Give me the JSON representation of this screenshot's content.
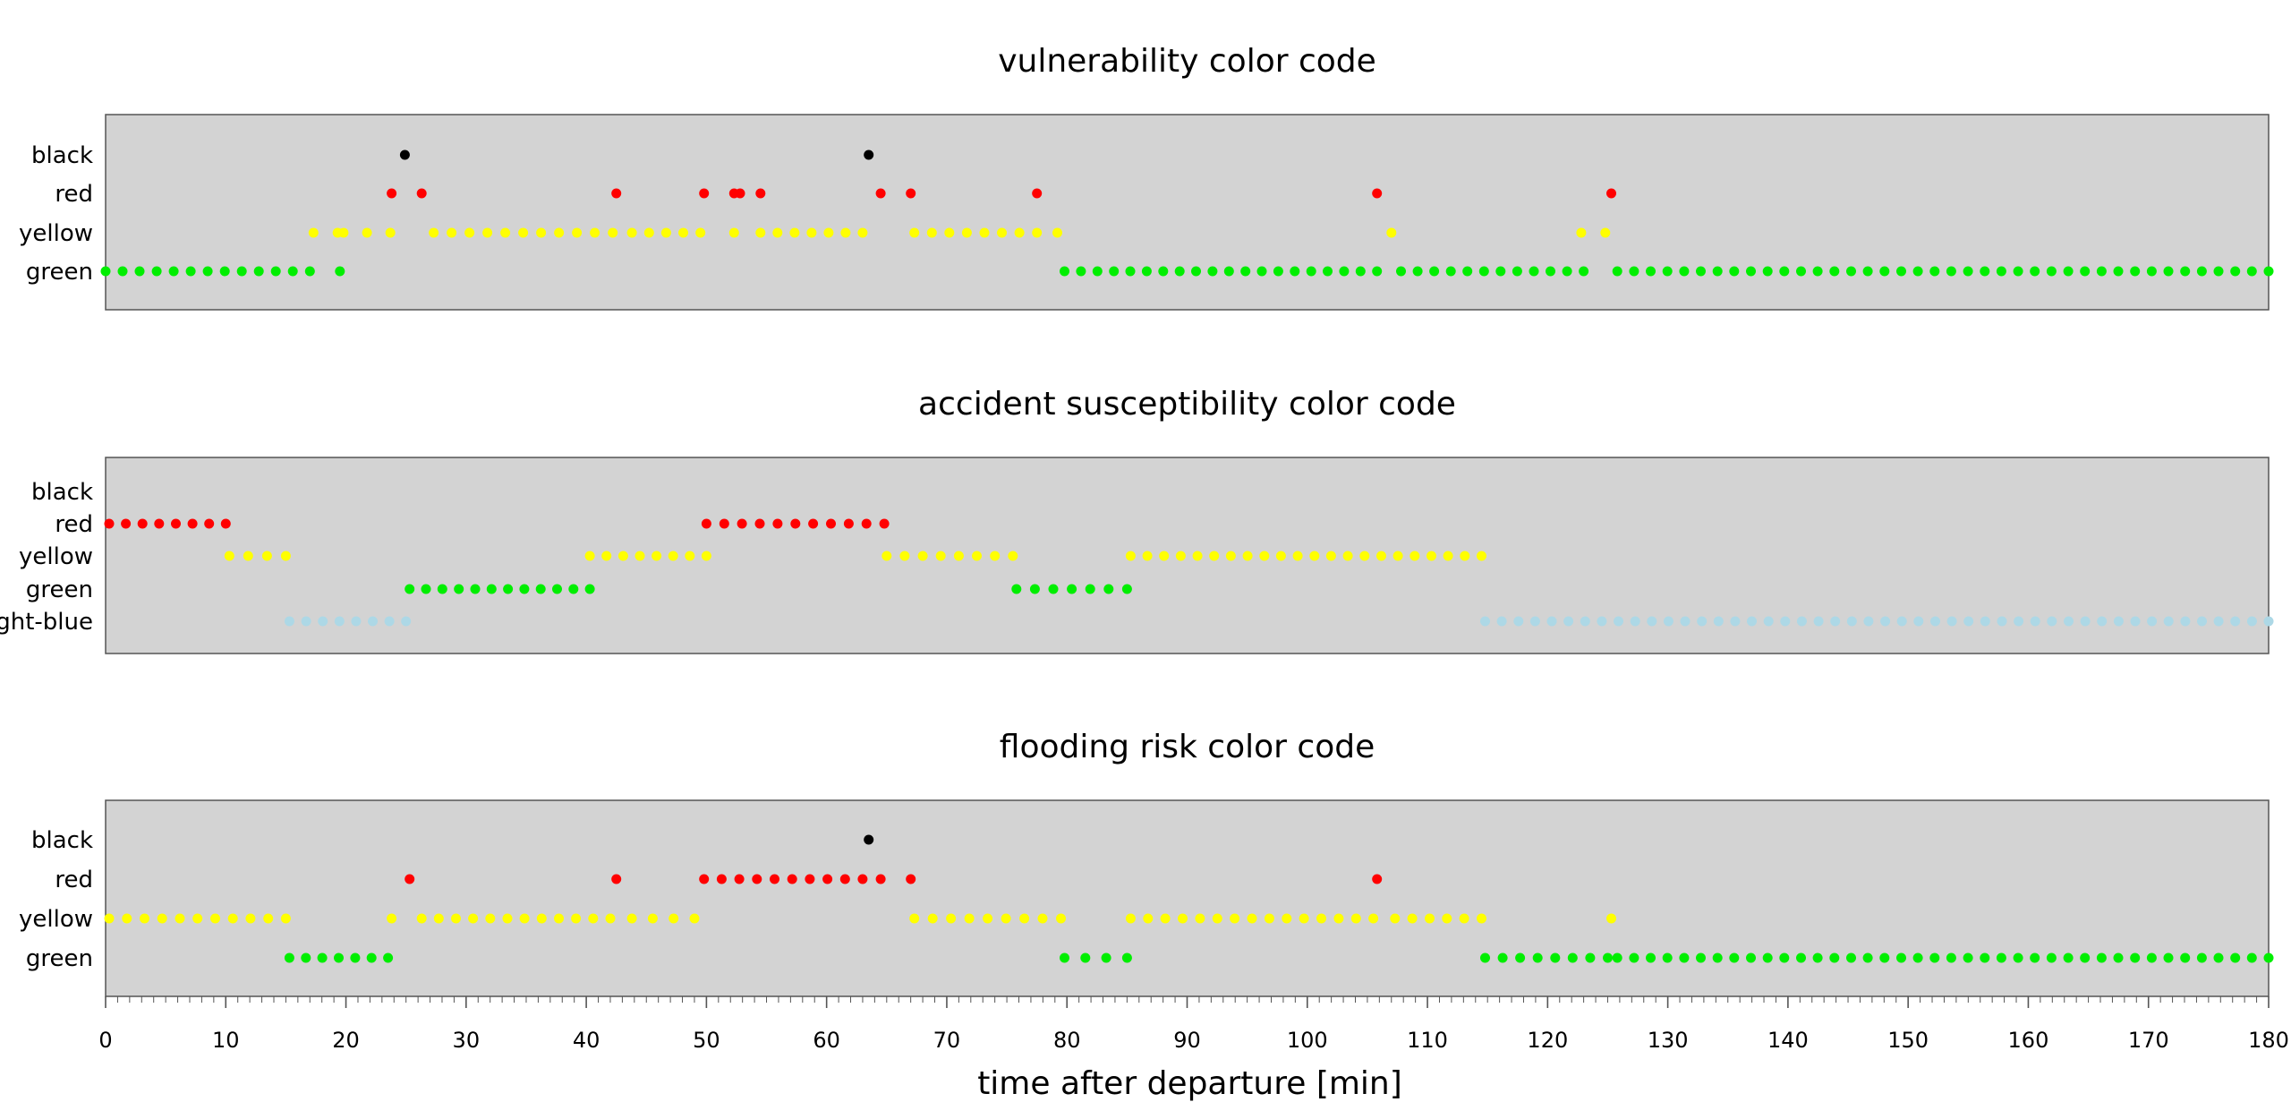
{
  "chart_data": [
    {
      "type": "scatter",
      "title": "vulnerability color code",
      "xlim": [
        0,
        180
      ],
      "categories": [
        "black",
        "red",
        "yellow",
        "green"
      ],
      "colors": {
        "black": "#000000",
        "red": "#ff0000",
        "yellow": "#ffff00",
        "green": "#00ee00"
      },
      "series": [
        {
          "name": "black",
          "segments": [
            [
              24.9,
              25.9
            ],
            [
              63.5,
              64.0
            ]
          ]
        },
        {
          "name": "red",
          "segments": [
            [
              23.8,
              24.5
            ],
            [
              26.3,
              27.0
            ],
            [
              42.5,
              43.5
            ],
            [
              49.8,
              52.3
            ],
            [
              52.8,
              54.5
            ],
            [
              64.5,
              67.0
            ],
            [
              77.5,
              78.5
            ],
            [
              105.8,
              106.8
            ],
            [
              125.3,
              125.3
            ]
          ]
        },
        {
          "name": "yellow",
          "segments": [
            [
              17.3,
              19.3
            ],
            [
              19.8,
              23.7
            ],
            [
              27.3,
              42.2
            ],
            [
              43.8,
              49.5
            ],
            [
              52.3,
              52.3
            ],
            [
              54.5,
              63.0
            ],
            [
              67.3,
              77.5
            ],
            [
              79.2,
              79.2
            ],
            [
              107.0,
              107.0
            ],
            [
              122.8,
              124.8
            ]
          ]
        },
        {
          "name": "green",
          "segments": [
            [
              0,
              17.0
            ],
            [
              19.5,
              19.5
            ],
            [
              79.8,
              105.8
            ],
            [
              107.8,
              123.0
            ],
            [
              125.8,
              180
            ]
          ]
        }
      ]
    },
    {
      "type": "scatter",
      "title": "accident susceptibility color code",
      "xlim": [
        0,
        180
      ],
      "categories": [
        "black",
        "red",
        "yellow",
        "green",
        "light-blue"
      ],
      "colors": {
        "black": "#000000",
        "red": "#ff0000",
        "yellow": "#ffff00",
        "green": "#00ee00",
        "light-blue": "#add8e6"
      },
      "series": [
        {
          "name": "black",
          "segments": []
        },
        {
          "name": "red",
          "segments": [
            [
              0.3,
              10.0
            ],
            [
              50.0,
              64.8
            ]
          ]
        },
        {
          "name": "yellow",
          "segments": [
            [
              10.3,
              15.0
            ],
            [
              40.3,
              50.0
            ],
            [
              65.0,
              75.5
            ],
            [
              85.3,
              114.5
            ]
          ]
        },
        {
          "name": "green",
          "segments": [
            [
              25.3,
              40.3
            ],
            [
              75.8,
              85.0
            ]
          ]
        },
        {
          "name": "light-blue",
          "segments": [
            [
              15.3,
              25.0
            ],
            [
              114.8,
              180
            ]
          ]
        }
      ]
    },
    {
      "type": "scatter",
      "title": "flooding risk color code",
      "xlim": [
        0,
        180
      ],
      "categories": [
        "black",
        "red",
        "yellow",
        "green"
      ],
      "colors": {
        "black": "#000000",
        "red": "#ff0000",
        "yellow": "#ffff00",
        "green": "#00ee00"
      },
      "series": [
        {
          "name": "black",
          "segments": [
            [
              63.5,
              64.0
            ]
          ]
        },
        {
          "name": "red",
          "segments": [
            [
              25.3,
              26.0
            ],
            [
              42.5,
              43.5
            ],
            [
              49.8,
              63.0
            ],
            [
              64.5,
              67.0
            ],
            [
              105.8,
              106.8
            ]
          ]
        },
        {
          "name": "yellow",
          "segments": [
            [
              0.3,
              15.0
            ],
            [
              23.8,
              25.0
            ],
            [
              26.3,
              42.0
            ],
            [
              43.8,
              49.0
            ],
            [
              67.3,
              79.5
            ],
            [
              85.3,
              105.5
            ],
            [
              107.3,
              114.5
            ],
            [
              125.3,
              125.3
            ]
          ]
        },
        {
          "name": "green",
          "segments": [
            [
              15.3,
              23.5
            ],
            [
              79.8,
              85.0
            ],
            [
              114.8,
              125.0
            ],
            [
              125.8,
              180
            ]
          ]
        }
      ]
    }
  ],
  "x_axis": {
    "label": "time after departure [min]",
    "ticks": [
      0,
      10,
      20,
      30,
      40,
      50,
      60,
      70,
      80,
      90,
      100,
      110,
      120,
      130,
      140,
      150,
      160,
      170,
      180
    ],
    "minor_step": 1
  }
}
